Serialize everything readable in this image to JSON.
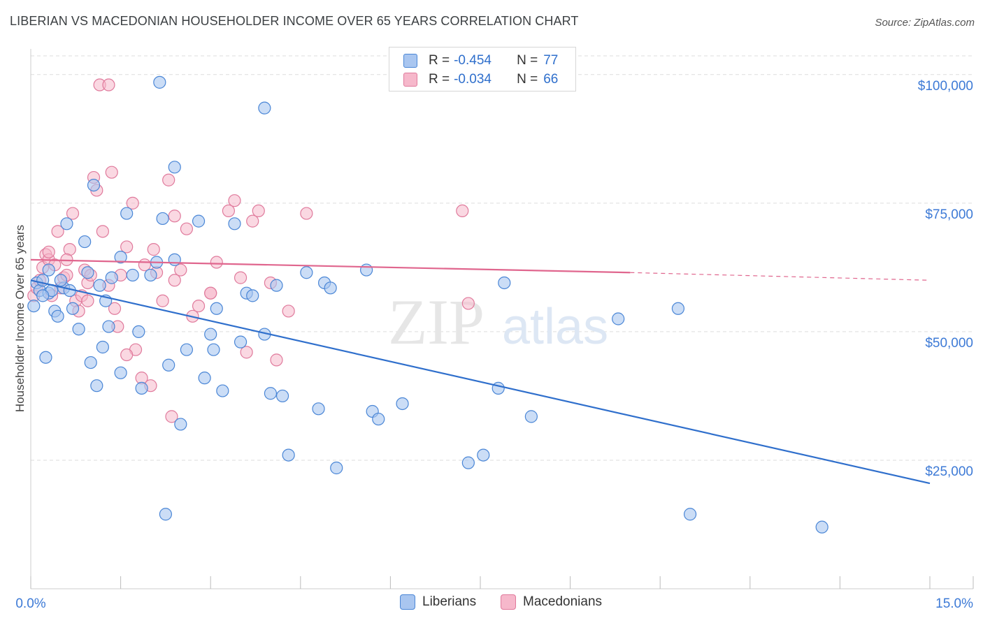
{
  "header": {
    "title": "LIBERIAN VS MACEDONIAN HOUSEHOLDER INCOME OVER 65 YEARS CORRELATION CHART",
    "source": "Source: ZipAtlas.com"
  },
  "legend": {
    "rows": [
      {
        "r_label": "R = ",
        "r_value": "-0.454",
        "n_label": "N = ",
        "n_value": "77"
      },
      {
        "r_label": "R = ",
        "r_value": "-0.034",
        "n_label": "N = ",
        "n_value": "66"
      }
    ]
  },
  "bottom_legend": [
    "Liberians",
    "Macedonians"
  ],
  "watermark": {
    "zip": "ZIP",
    "atlas": "atlas"
  },
  "colors": {
    "liberians_fill": "#a9c6f0",
    "liberians_stroke": "#4a86d6",
    "liberians_line": "#2f6fcc",
    "macedonians_fill": "#f6b8cb",
    "macedonians_stroke": "#e07a9c",
    "macedonians_line": "#e0668e",
    "axis_label": "#3d7ad6"
  },
  "chart_data": {
    "type": "scatter",
    "title": "LIBERIAN VS MACEDONIAN HOUSEHOLDER INCOME OVER 65 YEARS CORRELATION CHART",
    "xlabel": "",
    "ylabel": "Householder Income Over 65 years",
    "xlim": [
      0,
      15
    ],
    "ylim": [
      0,
      105000
    ],
    "x_tick_labels": [
      "0.0%",
      "15.0%"
    ],
    "y_ticks": [
      25000,
      50000,
      75000,
      100000
    ],
    "y_tick_labels": [
      "$25,000",
      "$50,000",
      "$75,000",
      "$100,000"
    ],
    "grid": true,
    "legend_position": "top-center",
    "series": [
      {
        "name": "Liberians",
        "R": -0.454,
        "N": 77,
        "trend": {
          "x": [
            0,
            15
          ],
          "y": [
            60000,
            20500
          ]
        },
        "points": [
          [
            0.05,
            55000
          ],
          [
            0.1,
            59500
          ],
          [
            0.15,
            58000
          ],
          [
            0.2,
            60000
          ],
          [
            0.25,
            45000
          ],
          [
            0.3,
            57500
          ],
          [
            0.35,
            58000
          ],
          [
            0.4,
            54000
          ],
          [
            0.55,
            58500
          ],
          [
            0.6,
            71000
          ],
          [
            0.7,
            54500
          ],
          [
            0.8,
            50500
          ],
          [
            0.9,
            67500
          ],
          [
            0.95,
            61500
          ],
          [
            1.0,
            44000
          ],
          [
            1.05,
            78500
          ],
          [
            1.1,
            39500
          ],
          [
            1.15,
            59000
          ],
          [
            1.2,
            47000
          ],
          [
            1.3,
            51000
          ],
          [
            1.5,
            42000
          ],
          [
            1.5,
            64500
          ],
          [
            1.6,
            73000
          ],
          [
            1.8,
            50000
          ],
          [
            1.85,
            39000
          ],
          [
            2.0,
            61000
          ],
          [
            2.1,
            63500
          ],
          [
            2.2,
            72000
          ],
          [
            2.25,
            14500
          ],
          [
            2.3,
            43500
          ],
          [
            2.4,
            64000
          ],
          [
            2.5,
            32000
          ],
          [
            2.6,
            46500
          ],
          [
            2.8,
            71500
          ],
          [
            2.9,
            41000
          ],
          [
            3.0,
            49500
          ],
          [
            3.05,
            46500
          ],
          [
            3.1,
            54500
          ],
          [
            3.2,
            38500
          ],
          [
            3.4,
            71000
          ],
          [
            3.5,
            48000
          ],
          [
            3.6,
            57500
          ],
          [
            3.7,
            57000
          ],
          [
            3.9,
            49500
          ],
          [
            4.0,
            38000
          ],
          [
            4.1,
            59000
          ],
          [
            4.2,
            37500
          ],
          [
            4.3,
            26000
          ],
          [
            4.6,
            61500
          ],
          [
            4.8,
            35000
          ],
          [
            4.9,
            59500
          ],
          [
            5.0,
            58500
          ],
          [
            5.1,
            23500
          ],
          [
            5.6,
            62000
          ],
          [
            5.7,
            34500
          ],
          [
            5.8,
            33000
          ],
          [
            6.2,
            36000
          ],
          [
            7.3,
            24500
          ],
          [
            7.55,
            26000
          ],
          [
            7.8,
            39000
          ],
          [
            7.9,
            59500
          ],
          [
            8.35,
            33500
          ],
          [
            9.8,
            52500
          ],
          [
            10.8,
            54500
          ],
          [
            11.0,
            14500
          ],
          [
            13.2,
            12000
          ],
          [
            0.2,
            57000
          ],
          [
            0.3,
            62000
          ],
          [
            0.45,
            53000
          ],
          [
            0.65,
            58000
          ],
          [
            1.25,
            56000
          ],
          [
            1.7,
            61000
          ],
          [
            2.15,
            98500
          ],
          [
            3.9,
            93500
          ],
          [
            2.4,
            82000
          ],
          [
            1.35,
            60500
          ],
          [
            0.5,
            60000
          ]
        ]
      },
      {
        "name": "Macedonians",
        "R": -0.034,
        "N": 66,
        "trend": {
          "x": [
            0,
            10
          ],
          "y": [
            64000,
            61500
          ]
        },
        "trend_dashed": {
          "x": [
            10,
            15
          ],
          "y": [
            61500,
            60000
          ]
        },
        "points": [
          [
            0.05,
            57000
          ],
          [
            0.1,
            58500
          ],
          [
            0.15,
            60000
          ],
          [
            0.2,
            62500
          ],
          [
            0.25,
            65000
          ],
          [
            0.3,
            64000
          ],
          [
            0.35,
            57000
          ],
          [
            0.4,
            63000
          ],
          [
            0.45,
            69500
          ],
          [
            0.5,
            58500
          ],
          [
            0.55,
            60500
          ],
          [
            0.6,
            61000
          ],
          [
            0.65,
            66000
          ],
          [
            0.7,
            73000
          ],
          [
            0.75,
            56000
          ],
          [
            0.8,
            54000
          ],
          [
            0.85,
            57000
          ],
          [
            0.9,
            62000
          ],
          [
            0.95,
            59500
          ],
          [
            1.0,
            61000
          ],
          [
            1.05,
            80000
          ],
          [
            1.1,
            77500
          ],
          [
            1.2,
            69500
          ],
          [
            1.3,
            59000
          ],
          [
            1.4,
            54500
          ],
          [
            1.45,
            51000
          ],
          [
            1.5,
            61000
          ],
          [
            1.6,
            66500
          ],
          [
            1.7,
            75000
          ],
          [
            1.75,
            46500
          ],
          [
            1.85,
            41000
          ],
          [
            1.9,
            63000
          ],
          [
            2.0,
            39500
          ],
          [
            2.05,
            66000
          ],
          [
            2.1,
            61500
          ],
          [
            2.2,
            56000
          ],
          [
            2.3,
            79500
          ],
          [
            2.35,
            33500
          ],
          [
            2.4,
            72500
          ],
          [
            2.5,
            62000
          ],
          [
            2.6,
            70000
          ],
          [
            2.7,
            53000
          ],
          [
            2.8,
            55000
          ],
          [
            3.0,
            57500
          ],
          [
            3.1,
            63500
          ],
          [
            3.3,
            73500
          ],
          [
            3.4,
            75500
          ],
          [
            3.5,
            60500
          ],
          [
            3.6,
            46000
          ],
          [
            3.7,
            71500
          ],
          [
            3.8,
            73500
          ],
          [
            4.0,
            59500
          ],
          [
            4.1,
            44500
          ],
          [
            4.3,
            54000
          ],
          [
            4.6,
            73000
          ],
          [
            7.2,
            73500
          ],
          [
            7.3,
            55500
          ],
          [
            1.15,
            98000
          ],
          [
            1.3,
            98000
          ],
          [
            1.35,
            81000
          ],
          [
            0.3,
            65500
          ],
          [
            0.6,
            64000
          ],
          [
            0.95,
            56000
          ],
          [
            1.6,
            45500
          ],
          [
            2.4,
            60000
          ],
          [
            3.0,
            57500
          ]
        ]
      }
    ]
  }
}
